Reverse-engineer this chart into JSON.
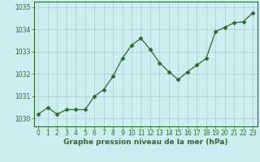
{
  "x": [
    0,
    1,
    2,
    3,
    4,
    5,
    6,
    7,
    8,
    9,
    10,
    11,
    12,
    13,
    14,
    15,
    16,
    17,
    18,
    19,
    20,
    21,
    22,
    23
  ],
  "y": [
    1030.2,
    1030.5,
    1030.2,
    1030.4,
    1030.4,
    1030.4,
    1031.0,
    1031.3,
    1031.9,
    1032.7,
    1033.3,
    1033.6,
    1033.1,
    1032.5,
    1032.1,
    1031.75,
    1032.1,
    1032.4,
    1032.7,
    1033.9,
    1034.1,
    1034.3,
    1034.35,
    1034.75
  ],
  "line_color": "#2d6a2d",
  "marker": "D",
  "marker_size": 2.5,
  "bg_color": "#cceef0",
  "grid_color": "#aacccc",
  "title": "Graphe pression niveau de la mer (hPa)",
  "ylabel_labels": [
    1030,
    1031,
    1032,
    1033,
    1034,
    1035
  ],
  "ylim": [
    1029.65,
    1035.25
  ],
  "xlim": [
    -0.5,
    23.5
  ],
  "tick_fontsize": 5.5,
  "title_fontsize": 6.5
}
